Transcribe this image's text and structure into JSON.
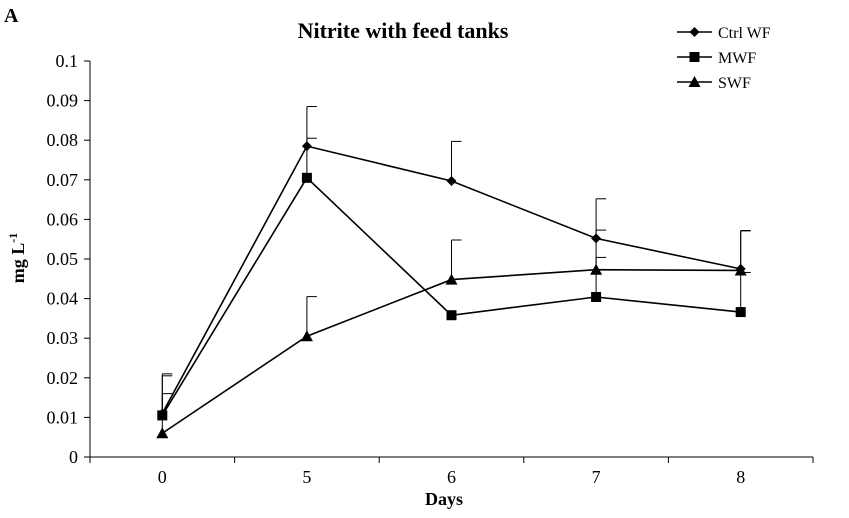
{
  "panel_label": "A",
  "chart_data": {
    "type": "line",
    "title": "Nitrite with feed tanks",
    "xlabel": "Days",
    "ylabel_main": "mg L",
    "ylabel_sup": "-1",
    "categories": [
      "0",
      "5",
      "6",
      "7",
      "8"
    ],
    "ylim": [
      0,
      0.1
    ],
    "yticks": [
      "0",
      "0.01",
      "0.02",
      "0.03",
      "0.04",
      "0.05",
      "0.06",
      "0.07",
      "0.08",
      "0.09",
      "0.1"
    ],
    "grid": false,
    "legend_position": "top-right",
    "series": [
      {
        "name": "Ctrl WF",
        "marker": "diamond",
        "values": [
          0.011,
          0.0785,
          0.0697,
          0.0552,
          0.0475
        ],
        "error_upper": [
          0.021,
          0.0885,
          0.0797,
          0.0652,
          0.0572
        ]
      },
      {
        "name": "MWF",
        "marker": "square",
        "values": [
          0.0105,
          0.0705,
          0.0358,
          0.0404,
          0.0366
        ],
        "error_upper": [
          0.0205,
          0.0805,
          null,
          0.0504,
          0.0466
        ]
      },
      {
        "name": "SWF",
        "marker": "triangle",
        "values": [
          0.006,
          0.0305,
          0.0448,
          0.0473,
          0.0471
        ],
        "error_upper": [
          0.016,
          0.0405,
          0.0548,
          0.0573,
          0.0571
        ]
      }
    ]
  }
}
